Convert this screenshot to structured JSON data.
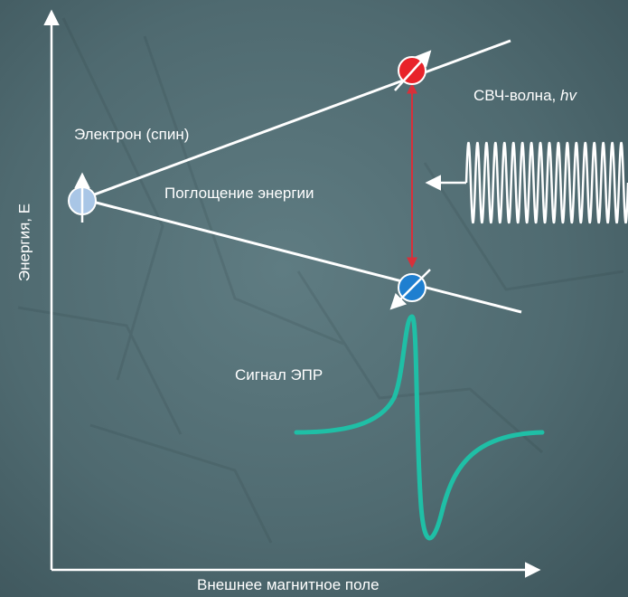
{
  "diagram": {
    "labels": {
      "x_axis": "Внешнее магнитное поле",
      "y_axis": "Энергия, E",
      "electron": "Электрон (спин)",
      "absorption": "Поглощение энергии",
      "signal": "Сигнал ЭПР",
      "wave_prefix": "СВЧ-волна, ",
      "wave_symbol": "hv"
    },
    "colors": {
      "background": "#536d73",
      "axis": "#ffffff",
      "upper_state": "#e8232a",
      "lower_state": "#1e7fd0",
      "initial_state": "#a9c6e6",
      "transition_arrow": "#d8303a",
      "epr_signal": "#1fbfa6"
    },
    "icons": {
      "electron_initial": "spin-up-circle-icon",
      "electron_upper": "spin-parallel-circle-icon",
      "electron_lower": "spin-antiparallel-circle-icon"
    }
  }
}
